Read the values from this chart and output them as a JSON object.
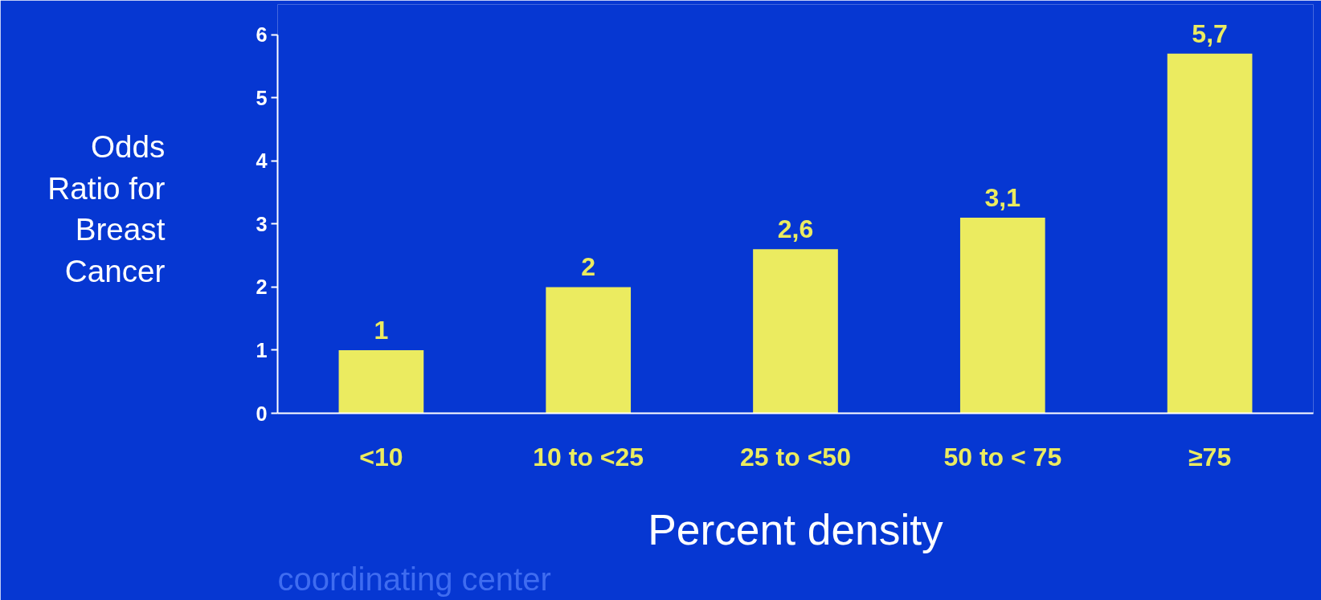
{
  "chart_data": {
    "type": "bar",
    "categories": [
      "<10",
      "10 to <25",
      "25 to <50",
      "50 to < 75",
      "≥75"
    ],
    "values": [
      1,
      2,
      2.6,
      3.1,
      5.7
    ],
    "value_labels": [
      "1",
      "2",
      "2,6",
      "3,1",
      "5,7"
    ],
    "color": "#ebeb60",
    "ylim": [
      0,
      6
    ],
    "yticks": [
      0,
      1,
      2,
      3,
      4,
      5,
      6
    ],
    "xlabel": "Percent density",
    "ylabel": "Odds Ratio for Breast Cancer",
    "annotations": [
      "coordinating center"
    ],
    "grid": false
  }
}
